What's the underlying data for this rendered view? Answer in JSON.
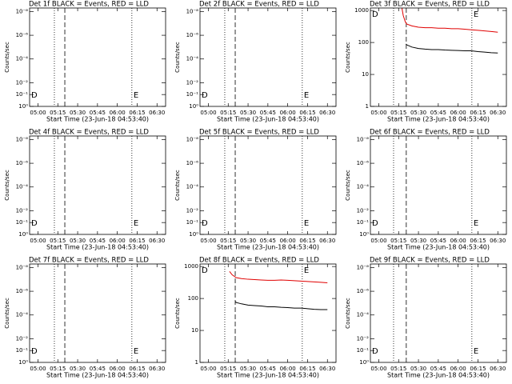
{
  "chart_data": [
    {
      "type": "line",
      "title": "Det 1f BLACK = Events, RED = LLD",
      "ylabel": "Counts/sec",
      "xlabel": "Start Time (23-Jun-18 04:53:40)",
      "log_y": false,
      "xlim": [
        293.67,
        396.5
      ],
      "xticks": [
        {
          "value": 300,
          "label": "05:00"
        },
        {
          "value": 315,
          "label": "05:15"
        },
        {
          "value": 330,
          "label": "05:30"
        },
        {
          "value": 345,
          "label": "05:45"
        },
        {
          "value": 360,
          "label": "06:00"
        },
        {
          "value": 375,
          "label": "06:15"
        },
        {
          "value": 390,
          "label": "06:30"
        }
      ],
      "ylim": [
        0,
        8.3
      ],
      "yticks": [
        {
          "value": 0,
          "label": "10⁰"
        },
        {
          "value": 1,
          "label": "10⁻¹"
        },
        {
          "value": 2,
          "label": "10⁻²"
        },
        {
          "value": 4,
          "label": "10⁻⁴"
        },
        {
          "value": 6,
          "label": "10⁻⁶"
        },
        {
          "value": 8,
          "label": "10⁻⁸"
        }
      ],
      "markers": [
        {
          "x": 312.4,
          "style": "dotted"
        },
        {
          "x": 320.3,
          "style": "dashed"
        },
        {
          "x": 371,
          "style": "dotted"
        }
      ],
      "labels": [
        "D",
        "E"
      ],
      "series": []
    },
    {
      "type": "line",
      "title": "Det 2f BLACK = Events, RED = LLD",
      "ylabel": "Counts/sec",
      "xlabel": "Start Time (23-Jun-18 04:53:40)",
      "log_y": false,
      "xlim": [
        293.67,
        396.5
      ],
      "xticks": [
        {
          "value": 300,
          "label": "05:00"
        },
        {
          "value": 315,
          "label": "05:15"
        },
        {
          "value": 330,
          "label": "05:30"
        },
        {
          "value": 345,
          "label": "05:45"
        },
        {
          "value": 360,
          "label": "06:00"
        },
        {
          "value": 375,
          "label": "06:15"
        },
        {
          "value": 390,
          "label": "06:30"
        }
      ],
      "ylim": [
        0,
        8.3
      ],
      "yticks": [
        {
          "value": 0,
          "label": "10⁰"
        },
        {
          "value": 1,
          "label": "10⁻¹"
        },
        {
          "value": 2,
          "label": "10⁻²"
        },
        {
          "value": 4,
          "label": "10⁻⁴"
        },
        {
          "value": 6,
          "label": "10⁻⁶"
        },
        {
          "value": 8,
          "label": "10⁻⁸"
        }
      ],
      "markers": [
        {
          "x": 312.4,
          "style": "dotted"
        },
        {
          "x": 320.3,
          "style": "dashed"
        },
        {
          "x": 371,
          "style": "dotted"
        }
      ],
      "labels": [
        "D",
        "E"
      ],
      "series": []
    },
    {
      "type": "line",
      "title": "Det 3f BLACK = Events, RED = LLD",
      "ylabel": "Counts/sec",
      "xlabel": "Start Time (23-Jun-18 04:53:40)",
      "log_y": true,
      "xlim": [
        293.67,
        396.5
      ],
      "xticks": [
        {
          "value": 300,
          "label": "05:00"
        },
        {
          "value": 315,
          "label": "05:15"
        },
        {
          "value": 330,
          "label": "05:30"
        },
        {
          "value": 345,
          "label": "05:45"
        },
        {
          "value": 360,
          "label": "06:00"
        },
        {
          "value": 375,
          "label": "06:15"
        },
        {
          "value": 390,
          "label": "06:30"
        }
      ],
      "ylim": [
        1,
        1200
      ],
      "yticks": [
        1,
        10,
        100,
        1000
      ],
      "markers": [
        {
          "x": 311.2,
          "style": "dotted"
        },
        {
          "x": 320.8,
          "style": "dashed"
        },
        {
          "x": 370.4,
          "style": "dotted"
        }
      ],
      "labels": [
        "D",
        "E"
      ],
      "series": [
        {
          "name": "LLD",
          "color": "#e00000",
          "x": [
            317.5,
            318.5,
            320,
            321,
            325,
            330,
            335,
            340,
            345,
            350,
            355,
            360,
            365,
            370,
            375,
            380,
            385,
            390
          ],
          "values": [
            1200,
            700,
            450,
            380,
            330,
            300,
            290,
            290,
            280,
            280,
            270,
            270,
            260,
            250,
            240,
            230,
            220,
            210
          ]
        },
        {
          "name": "Events",
          "color": "#000000",
          "x": [
            320.5,
            321,
            325,
            330,
            335,
            340,
            345,
            350,
            355,
            360,
            365,
            370,
            375,
            380,
            385,
            390
          ],
          "values": [
            90,
            85,
            72,
            65,
            62,
            60,
            60,
            58,
            57,
            56,
            55,
            55,
            52,
            50,
            48,
            47
          ]
        }
      ]
    },
    {
      "type": "line",
      "title": "Det 4f BLACK = Events, RED = LLD",
      "ylabel": "Counts/sec",
      "xlabel": "Start Time (23-Jun-18 04:53:40)",
      "log_y": false,
      "xlim": [
        293.67,
        396.5
      ],
      "xticks": [
        {
          "value": 300,
          "label": "05:00"
        },
        {
          "value": 315,
          "label": "05:15"
        },
        {
          "value": 330,
          "label": "05:30"
        },
        {
          "value": 345,
          "label": "05:45"
        },
        {
          "value": 360,
          "label": "06:00"
        },
        {
          "value": 375,
          "label": "06:15"
        },
        {
          "value": 390,
          "label": "06:30"
        }
      ],
      "ylim": [
        0,
        8.3
      ],
      "yticks": [
        {
          "value": 0,
          "label": "10⁰"
        },
        {
          "value": 1,
          "label": "10⁻¹"
        },
        {
          "value": 2,
          "label": "10⁻²"
        },
        {
          "value": 4,
          "label": "10⁻⁴"
        },
        {
          "value": 6,
          "label": "10⁻⁶"
        },
        {
          "value": 8,
          "label": "10⁻⁸"
        }
      ],
      "markers": [
        {
          "x": 312.4,
          "style": "dotted"
        },
        {
          "x": 320.3,
          "style": "dashed"
        },
        {
          "x": 371,
          "style": "dotted"
        }
      ],
      "labels": [
        "D",
        "E"
      ],
      "series": []
    },
    {
      "type": "line",
      "title": "Det 5f BLACK = Events, RED = LLD",
      "ylabel": "Counts/sec",
      "xlabel": "Start Time (23-Jun-18 04:53:40)",
      "log_y": false,
      "xlim": [
        293.67,
        396.5
      ],
      "xticks": [
        {
          "value": 300,
          "label": "05:00"
        },
        {
          "value": 315,
          "label": "05:15"
        },
        {
          "value": 330,
          "label": "05:30"
        },
        {
          "value": 345,
          "label": "05:45"
        },
        {
          "value": 360,
          "label": "06:00"
        },
        {
          "value": 375,
          "label": "06:15"
        },
        {
          "value": 390,
          "label": "06:30"
        }
      ],
      "ylim": [
        0,
        8.3
      ],
      "yticks": [
        {
          "value": 0,
          "label": "10⁰"
        },
        {
          "value": 1,
          "label": "10⁻¹"
        },
        {
          "value": 2,
          "label": "10⁻²"
        },
        {
          "value": 4,
          "label": "10⁻⁴"
        },
        {
          "value": 6,
          "label": "10⁻⁶"
        },
        {
          "value": 8,
          "label": "10⁻⁸"
        }
      ],
      "markers": [
        {
          "x": 312.4,
          "style": "dotted"
        },
        {
          "x": 320.3,
          "style": "dashed"
        },
        {
          "x": 371,
          "style": "dotted"
        }
      ],
      "labels": [
        "D",
        "E"
      ],
      "series": []
    },
    {
      "type": "line",
      "title": "Det 6f BLACK = Events, RED = LLD",
      "ylabel": "Counts/sec",
      "xlabel": "Start Time (23-Jun-18 04:53:40)",
      "log_y": false,
      "xlim": [
        293.67,
        396.5
      ],
      "xticks": [
        {
          "value": 300,
          "label": "05:00"
        },
        {
          "value": 315,
          "label": "05:15"
        },
        {
          "value": 330,
          "label": "05:30"
        },
        {
          "value": 345,
          "label": "05:45"
        },
        {
          "value": 360,
          "label": "06:00"
        },
        {
          "value": 375,
          "label": "06:15"
        },
        {
          "value": 390,
          "label": "06:30"
        }
      ],
      "ylim": [
        0,
        8.3
      ],
      "yticks": [
        {
          "value": 0,
          "label": "10⁰"
        },
        {
          "value": 1,
          "label": "10⁻¹"
        },
        {
          "value": 2,
          "label": "10⁻²"
        },
        {
          "value": 4,
          "label": "10⁻⁴"
        },
        {
          "value": 6,
          "label": "10⁻⁶"
        },
        {
          "value": 8,
          "label": "10⁻⁸"
        }
      ],
      "markers": [
        {
          "x": 311.2,
          "style": "dotted"
        },
        {
          "x": 320.8,
          "style": "dashed"
        },
        {
          "x": 370.4,
          "style": "dotted"
        }
      ],
      "labels": [
        "D",
        "E"
      ],
      "series": []
    },
    {
      "type": "line",
      "title": "Det 7f BLACK = Events, RED = LLD",
      "ylabel": "Counts/sec",
      "xlabel": "Start Time (23-Jun-18 04:53:40)",
      "log_y": false,
      "xlim": [
        293.67,
        396.5
      ],
      "xticks": [
        {
          "value": 300,
          "label": "05:00"
        },
        {
          "value": 315,
          "label": "05:15"
        },
        {
          "value": 330,
          "label": "05:30"
        },
        {
          "value": 345,
          "label": "05:45"
        },
        {
          "value": 360,
          "label": "06:00"
        },
        {
          "value": 375,
          "label": "06:15"
        },
        {
          "value": 390,
          "label": "06:30"
        }
      ],
      "ylim": [
        0,
        8.3
      ],
      "yticks": [
        {
          "value": 0,
          "label": "10⁰"
        },
        {
          "value": 1,
          "label": "10⁻¹"
        },
        {
          "value": 2,
          "label": "10⁻²"
        },
        {
          "value": 4,
          "label": "10⁻⁴"
        },
        {
          "value": 6,
          "label": "10⁻⁶"
        },
        {
          "value": 8,
          "label": "10⁻⁸"
        }
      ],
      "markers": [
        {
          "x": 312.4,
          "style": "dotted"
        },
        {
          "x": 320.3,
          "style": "dashed"
        },
        {
          "x": 371,
          "style": "dotted"
        }
      ],
      "labels": [
        "D",
        "E"
      ],
      "series": []
    },
    {
      "type": "line",
      "title": "Det 8f BLACK = Events, RED = LLD",
      "ylabel": "Counts/sec",
      "xlabel": "Start Time (23-Jun-18 04:53:40)",
      "log_y": true,
      "xlim": [
        293.67,
        396.5
      ],
      "xticks": [
        {
          "value": 300,
          "label": "05:00"
        },
        {
          "value": 315,
          "label": "05:15"
        },
        {
          "value": 330,
          "label": "05:30"
        },
        {
          "value": 345,
          "label": "05:45"
        },
        {
          "value": 360,
          "label": "06:00"
        },
        {
          "value": 375,
          "label": "06:15"
        },
        {
          "value": 390,
          "label": "06:30"
        }
      ],
      "ylim": [
        1,
        1200
      ],
      "yticks": [
        1,
        10,
        100,
        1000
      ],
      "markers": [
        {
          "x": 312.4,
          "style": "dotted"
        },
        {
          "x": 320.3,
          "style": "dashed"
        },
        {
          "x": 371,
          "style": "dotted"
        }
      ],
      "labels": [
        "D",
        "E"
      ],
      "series": [
        {
          "name": "LLD",
          "color": "#e00000",
          "x": [
            316,
            318,
            320,
            321,
            325,
            330,
            335,
            340,
            345,
            350,
            355,
            360,
            365,
            370,
            375,
            380,
            385,
            390
          ],
          "values": [
            700,
            550,
            480,
            450,
            420,
            400,
            390,
            380,
            370,
            370,
            380,
            370,
            360,
            350,
            340,
            330,
            320,
            310
          ]
        },
        {
          "name": "Events",
          "color": "#000000",
          "x": [
            320.5,
            321,
            325,
            330,
            335,
            340,
            345,
            350,
            355,
            360,
            365,
            370,
            375,
            380,
            385,
            390
          ],
          "values": [
            80,
            75,
            68,
            62,
            60,
            58,
            55,
            55,
            53,
            52,
            50,
            50,
            48,
            46,
            45,
            45
          ]
        }
      ]
    },
    {
      "type": "line",
      "title": "Det 9f BLACK = Events, RED = LLD",
      "ylabel": "Counts/sec",
      "xlabel": "Start Time (23-Jun-18 04:53:40)",
      "log_y": false,
      "xlim": [
        293.67,
        396.5
      ],
      "xticks": [
        {
          "value": 300,
          "label": "05:00"
        },
        {
          "value": 315,
          "label": "05:15"
        },
        {
          "value": 330,
          "label": "05:30"
        },
        {
          "value": 345,
          "label": "05:45"
        },
        {
          "value": 360,
          "label": "06:00"
        },
        {
          "value": 375,
          "label": "06:15"
        },
        {
          "value": 390,
          "label": "06:30"
        }
      ],
      "ylim": [
        0,
        8.3
      ],
      "yticks": [
        {
          "value": 0,
          "label": "10⁰"
        },
        {
          "value": 1,
          "label": "10⁻¹"
        },
        {
          "value": 2,
          "label": "10⁻²"
        },
        {
          "value": 4,
          "label": "10⁻⁴"
        },
        {
          "value": 6,
          "label": "10⁻⁶"
        },
        {
          "value": 8,
          "label": "10⁻⁸"
        }
      ],
      "markers": [
        {
          "x": 311.2,
          "style": "dotted"
        },
        {
          "x": 320.8,
          "style": "dashed"
        },
        {
          "x": 370.4,
          "style": "dotted"
        }
      ],
      "labels": [
        "D",
        "E"
      ],
      "series": []
    }
  ]
}
